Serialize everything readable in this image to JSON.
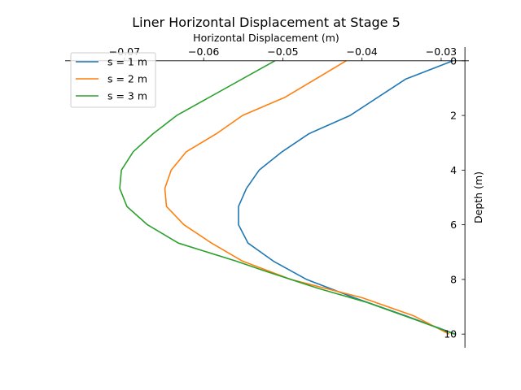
{
  "chart_data": {
    "type": "line",
    "title": "Liner Horizontal Displacement at Stage 5",
    "xlabel": "Horizontal Displacement (m)",
    "ylabel": "Depth (m)",
    "xlim": [
      -0.0775,
      -0.0265
    ],
    "ylim": [
      10.5,
      -0.5
    ],
    "x_ticks": [
      -0.07,
      -0.06,
      -0.05,
      -0.04,
      -0.03
    ],
    "x_tick_labels": [
      "−0.07",
      "−0.06",
      "−0.05",
      "−0.04",
      "−0.03"
    ],
    "y_ticks": [
      0,
      2,
      4,
      6,
      8,
      10
    ],
    "y_tick_labels": [
      "0",
      "2",
      "4",
      "6",
      "8",
      "10"
    ],
    "y_inverted": true,
    "x_axis_position": "top",
    "y_axis_position": "right",
    "grid": false,
    "legend_position": "top-left",
    "series": [
      {
        "name": "s = 1 m",
        "color": "#1f77b4",
        "x": [
          -0.0285,
          -0.0345,
          -0.0415,
          -0.0467,
          -0.0501,
          -0.053,
          -0.0546,
          -0.0556,
          -0.0556,
          -0.0544,
          -0.0512,
          -0.047,
          -0.041,
          -0.0345,
          -0.0282
        ],
        "y": [
          0,
          0.67,
          2,
          2.67,
          3.33,
          4,
          4.67,
          5.33,
          6,
          6.67,
          7.33,
          8,
          8.67,
          9.33,
          10
        ]
      },
      {
        "name": "s = 2 m",
        "color": "#ff7f0e",
        "x": [
          -0.042,
          -0.0497,
          -0.0551,
          -0.0584,
          -0.0622,
          -0.0641,
          -0.0649,
          -0.0647,
          -0.0625,
          -0.059,
          -0.0551,
          -0.049,
          -0.04,
          -0.0335,
          -0.029
        ],
        "y": [
          0,
          1.33,
          2,
          2.67,
          3.33,
          4,
          4.67,
          5.33,
          6,
          6.67,
          7.33,
          8,
          8.67,
          9.33,
          10
        ]
      },
      {
        "name": "s = 3 m",
        "color": "#2ca02c",
        "x": [
          -0.051,
          -0.0634,
          -0.0664,
          -0.0689,
          -0.0704,
          -0.0706,
          -0.0697,
          -0.0671,
          -0.0632,
          -0.0559,
          -0.0525,
          -0.0455,
          -0.0395,
          -0.033,
          -0.0283
        ],
        "y": [
          0,
          2,
          2.67,
          3.33,
          4,
          4.67,
          5.33,
          6,
          6.67,
          7.33,
          7.67,
          8.33,
          8.83,
          9.5,
          10
        ]
      }
    ]
  }
}
